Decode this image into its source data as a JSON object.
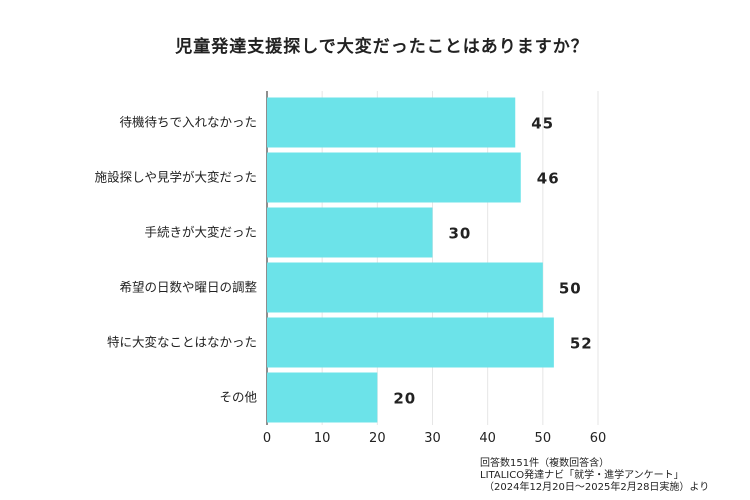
{
  "chart_data": {
    "type": "bar",
    "orientation": "horizontal",
    "title": "児童発達支援探しで大変だったことはありますか？",
    "categories": [
      "待機待ちで入れなかった",
      "施設探しや見学が大変だった",
      "手続きが大変だった",
      "希望の日数や曜日の調整",
      "特に大変なことはなかった",
      "その他"
    ],
    "values": [
      45,
      46,
      30,
      50,
      52,
      20
    ],
    "xlim": [
      0,
      60
    ],
    "xticks": [
      "0",
      "10",
      "20",
      "30",
      "40",
      "50",
      "60"
    ],
    "grid": true,
    "bar_color": "#6ce3e9"
  },
  "footnote": {
    "line1": "回答数151件（複数回答含）",
    "line2": "LITALICO発達ナビ「就学・進学アンケート」",
    "line3": "（2024年12月20日～2025年2月28日実施）より"
  }
}
